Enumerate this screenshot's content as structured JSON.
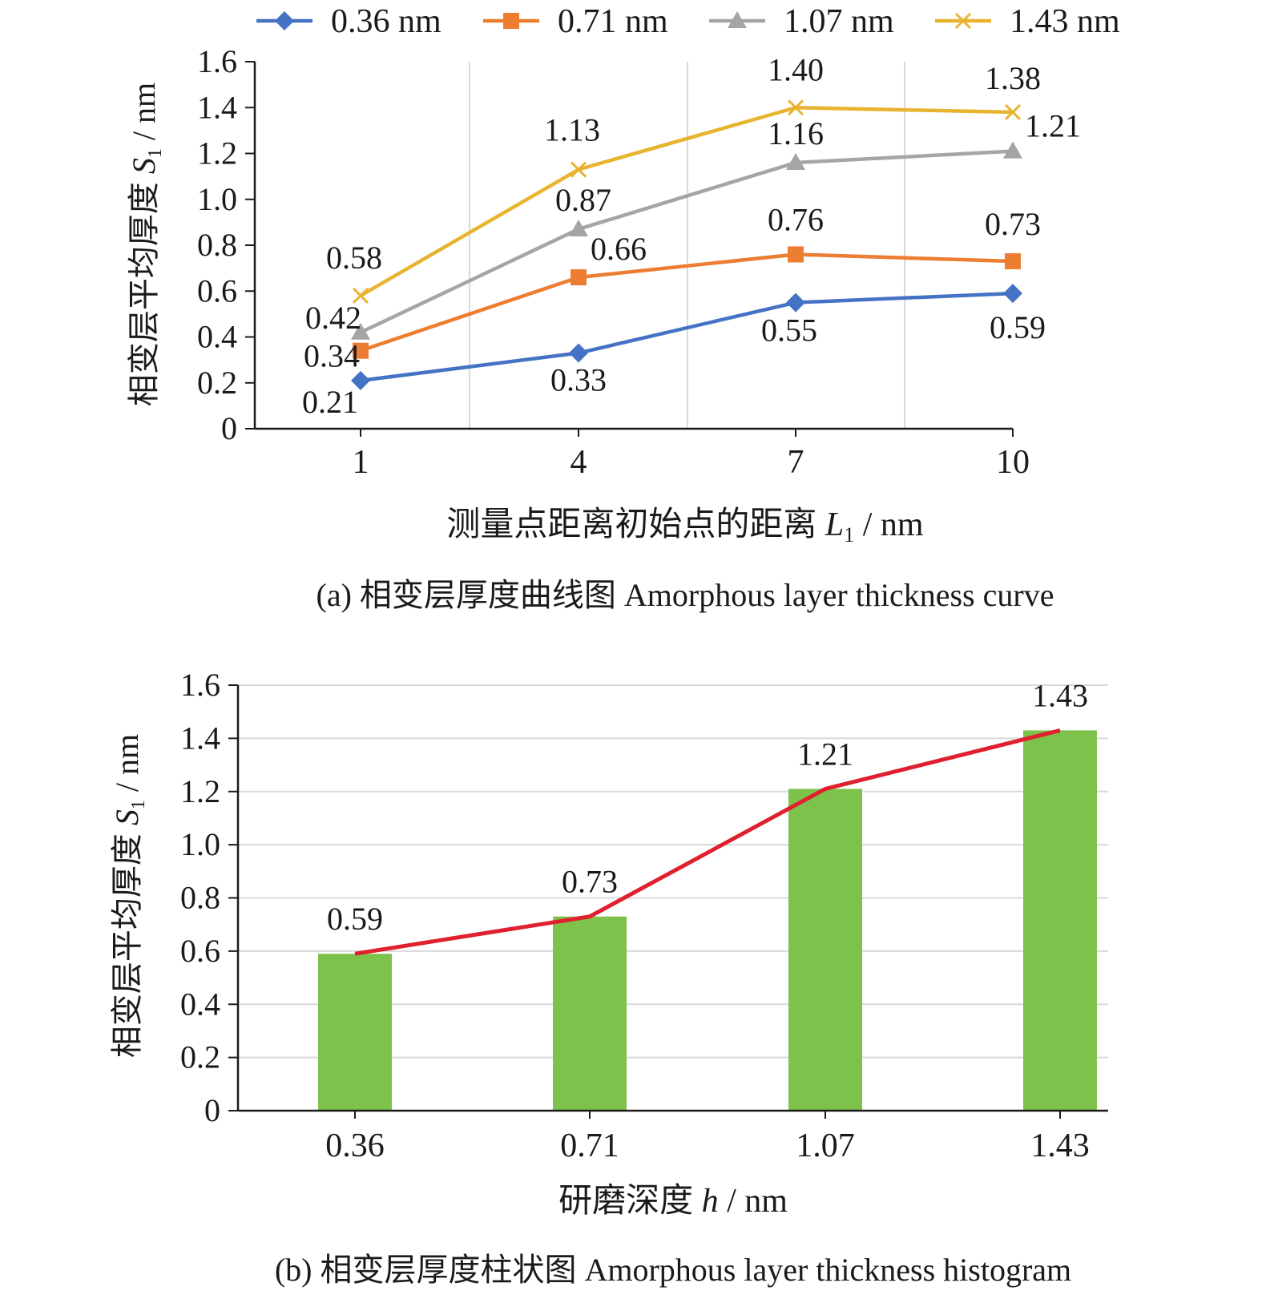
{
  "chart_data": [
    {
      "type": "line",
      "x": [
        1,
        4,
        7,
        10
      ],
      "ylim": [
        0,
        1.6
      ],
      "yticks": [
        "0",
        "0.2",
        "0.4",
        "0.6",
        "0.8",
        "1.0",
        "1.2",
        "1.4",
        "1.6"
      ],
      "xticks": [
        "1",
        "4",
        "7",
        "10"
      ],
      "ylabel": {
        "main": "相变层平均厚度 ",
        "var": "S",
        "sub": "1",
        "unit": " / nm"
      },
      "xlabel": {
        "main": "测量点距离初始点的距离 ",
        "var": "L",
        "sub": "1",
        "unit": " / nm"
      },
      "caption": "(a) 相变层厚度曲线图 Amorphous layer thickness curve",
      "legend_position": "top",
      "series": [
        {
          "name": "0.36 nm",
          "color": "#4472c4",
          "marker": "diamond",
          "values": [
            0.21,
            0.33,
            0.55,
            0.59
          ],
          "labels": [
            "0.21",
            "0.33",
            "0.55",
            "0.59"
          ]
        },
        {
          "name": "0.71 nm",
          "color": "#ed7d31",
          "marker": "square",
          "values": [
            0.34,
            0.66,
            0.76,
            0.73
          ],
          "labels": [
            "0.34",
            "0.66",
            "0.76",
            "0.73"
          ]
        },
        {
          "name": "1.07 nm",
          "color": "#a5a5a5",
          "marker": "triangle",
          "values": [
            0.42,
            0.87,
            1.16,
            1.21
          ],
          "labels": [
            "0.42",
            "0.87",
            "1.16",
            "1.21"
          ]
        },
        {
          "name": "1.43 nm",
          "color": "#e8b430",
          "marker": "x",
          "values": [
            0.58,
            1.13,
            1.4,
            1.38
          ],
          "labels": [
            "0.58",
            "1.13",
            "1.40",
            "1.38"
          ]
        }
      ]
    },
    {
      "type": "bar",
      "categories": [
        "0.36",
        "0.71",
        "1.07",
        "1.43"
      ],
      "values": [
        0.59,
        0.73,
        1.21,
        1.43
      ],
      "labels": [
        "0.59",
        "0.73",
        "1.21",
        "1.43"
      ],
      "bar_color": "#7dc24b",
      "line_color": "#e0202e",
      "ylim": [
        0,
        1.6
      ],
      "yticks": [
        "0",
        "0.2",
        "0.4",
        "0.6",
        "0.8",
        "1.0",
        "1.2",
        "1.4",
        "1.6"
      ],
      "ylabel": {
        "main": "相变层平均厚度 ",
        "var": "S",
        "sub": "1",
        "unit": " / nm"
      },
      "xlabel": {
        "main": "研磨深度 ",
        "var": "h",
        "unit": " / nm"
      },
      "caption": "(b) 相变层厚度柱状图 Amorphous layer thickness histogram"
    }
  ]
}
